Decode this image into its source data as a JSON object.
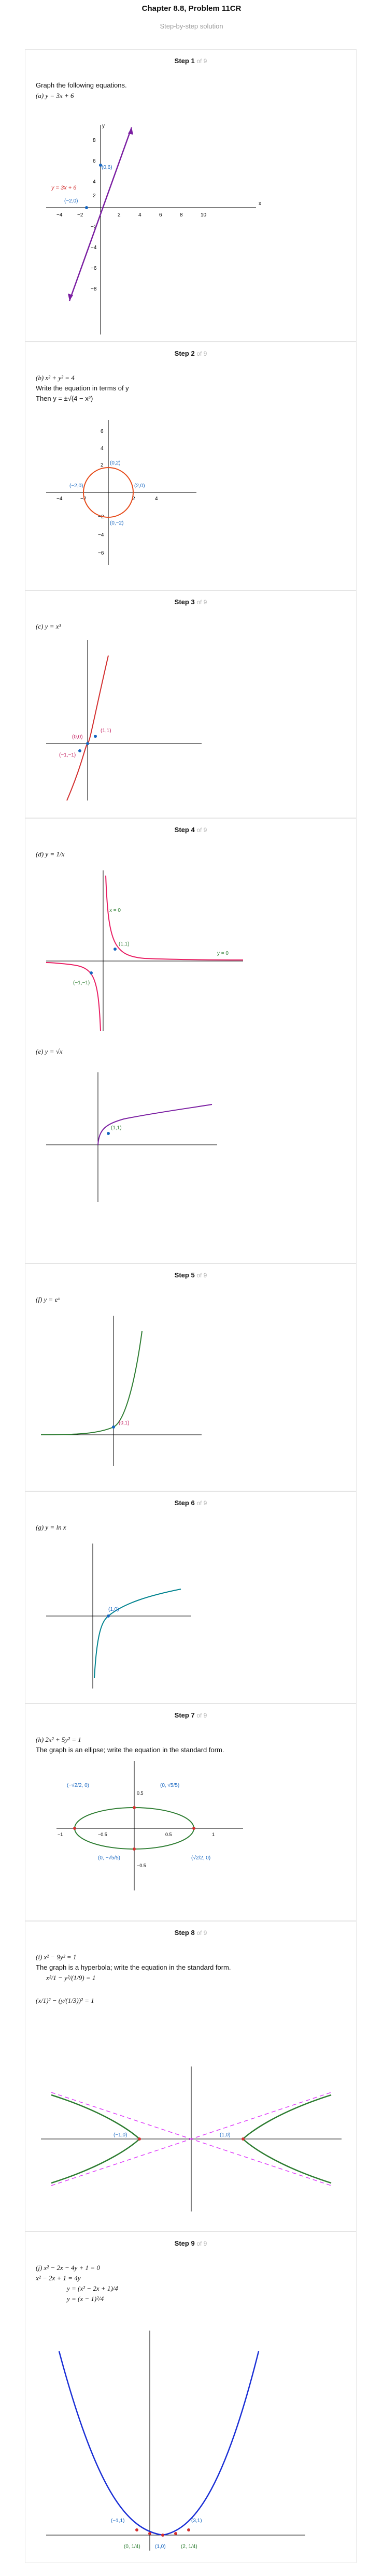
{
  "header": {
    "title": "Chapter 8.8, Problem 11CR",
    "subtitle": "Step-by-step solution"
  },
  "steps": [
    {
      "num": "Step 1",
      "of": "of 9",
      "lines": [
        "Graph the following equations.",
        "(a)  y = 3x + 6"
      ],
      "labels": {
        "eq": "y = 3x + 6",
        "p1": "(0,6)",
        "p2": "(−2,0)"
      }
    },
    {
      "num": "Step 2",
      "of": "of 9",
      "lines": [
        "(b)  x² + y² = 4",
        "Write the equation in terms of y",
        "Then  y = ±√(4 − x²)"
      ],
      "labels": {
        "top": "(0,2)",
        "left": "(−2,0)",
        "right": "(2,0)",
        "bottom": "(0,−2)"
      }
    },
    {
      "num": "Step 3",
      "of": "of 9",
      "lines": [
        "(c)  y = x³"
      ],
      "labels": {
        "p0": "(0,0)",
        "p1": "(1,1)",
        "pm1": "(−1,−1)"
      }
    },
    {
      "num": "Step 4",
      "of": "of 9",
      "lines": [
        "(d)  y = 1/x"
      ],
      "labels": {
        "x0": "x = 0",
        "y0": "y = 0",
        "p1": "(1,1)",
        "pm1": "(−1,−1)"
      },
      "lines2": [
        "(e)  y = √x"
      ],
      "labels2": {
        "p1": "(1,1)"
      }
    },
    {
      "num": "Step 5",
      "of": "of 9",
      "lines": [
        "(f)  y = eˣ"
      ],
      "labels": {
        "p1": "(0,1)"
      }
    },
    {
      "num": "Step 6",
      "of": "of 9",
      "lines": [
        "(g)  y = ln x"
      ],
      "labels": {
        "p1": "(1,0)"
      }
    },
    {
      "num": "Step 7",
      "of": "of 9",
      "lines": [
        "(h)  2x² + 5y² = 1",
        "The graph is an ellipse; write the equation in the standard form."
      ],
      "labels": {
        "l1": "(−√2/2, 0)",
        "l2": "(0, √5/5)",
        "l3": "(0, −√5/5)",
        "l4": "(√2/2, 0)",
        "t1": "0.5",
        "t2": "0.5",
        "t3": "−0.5",
        "t4": "−0.5",
        "t5": "−1",
        "t6": "1"
      }
    },
    {
      "num": "Step 8",
      "of": "of 9",
      "lines": [
        "(i)  x² − 9y² = 1",
        "The graph is a hyperbola; write the equation in the standard form.",
        "x²/1 − y²/(1/9) = 1",
        "(x/1)² − (y/(1/3))² = 1"
      ],
      "labels": {
        "l1": "(−1,0)",
        "l2": "(1,0)"
      }
    },
    {
      "num": "Step 9",
      "of": "of 9",
      "lines": [
        "(j)  x² − 2x − 4y + 1 = 0",
        "x² − 2x + 1 = 4y",
        "y = (x² − 2x + 1)/4",
        "y = (x − 1)²/4"
      ],
      "labels": {
        "l1": "(−1,1)",
        "l2": "(3,1)",
        "l3": "(0, 1/4)",
        "l4": "(1,0)",
        "l5": "(2, 1/4)"
      }
    }
  ]
}
